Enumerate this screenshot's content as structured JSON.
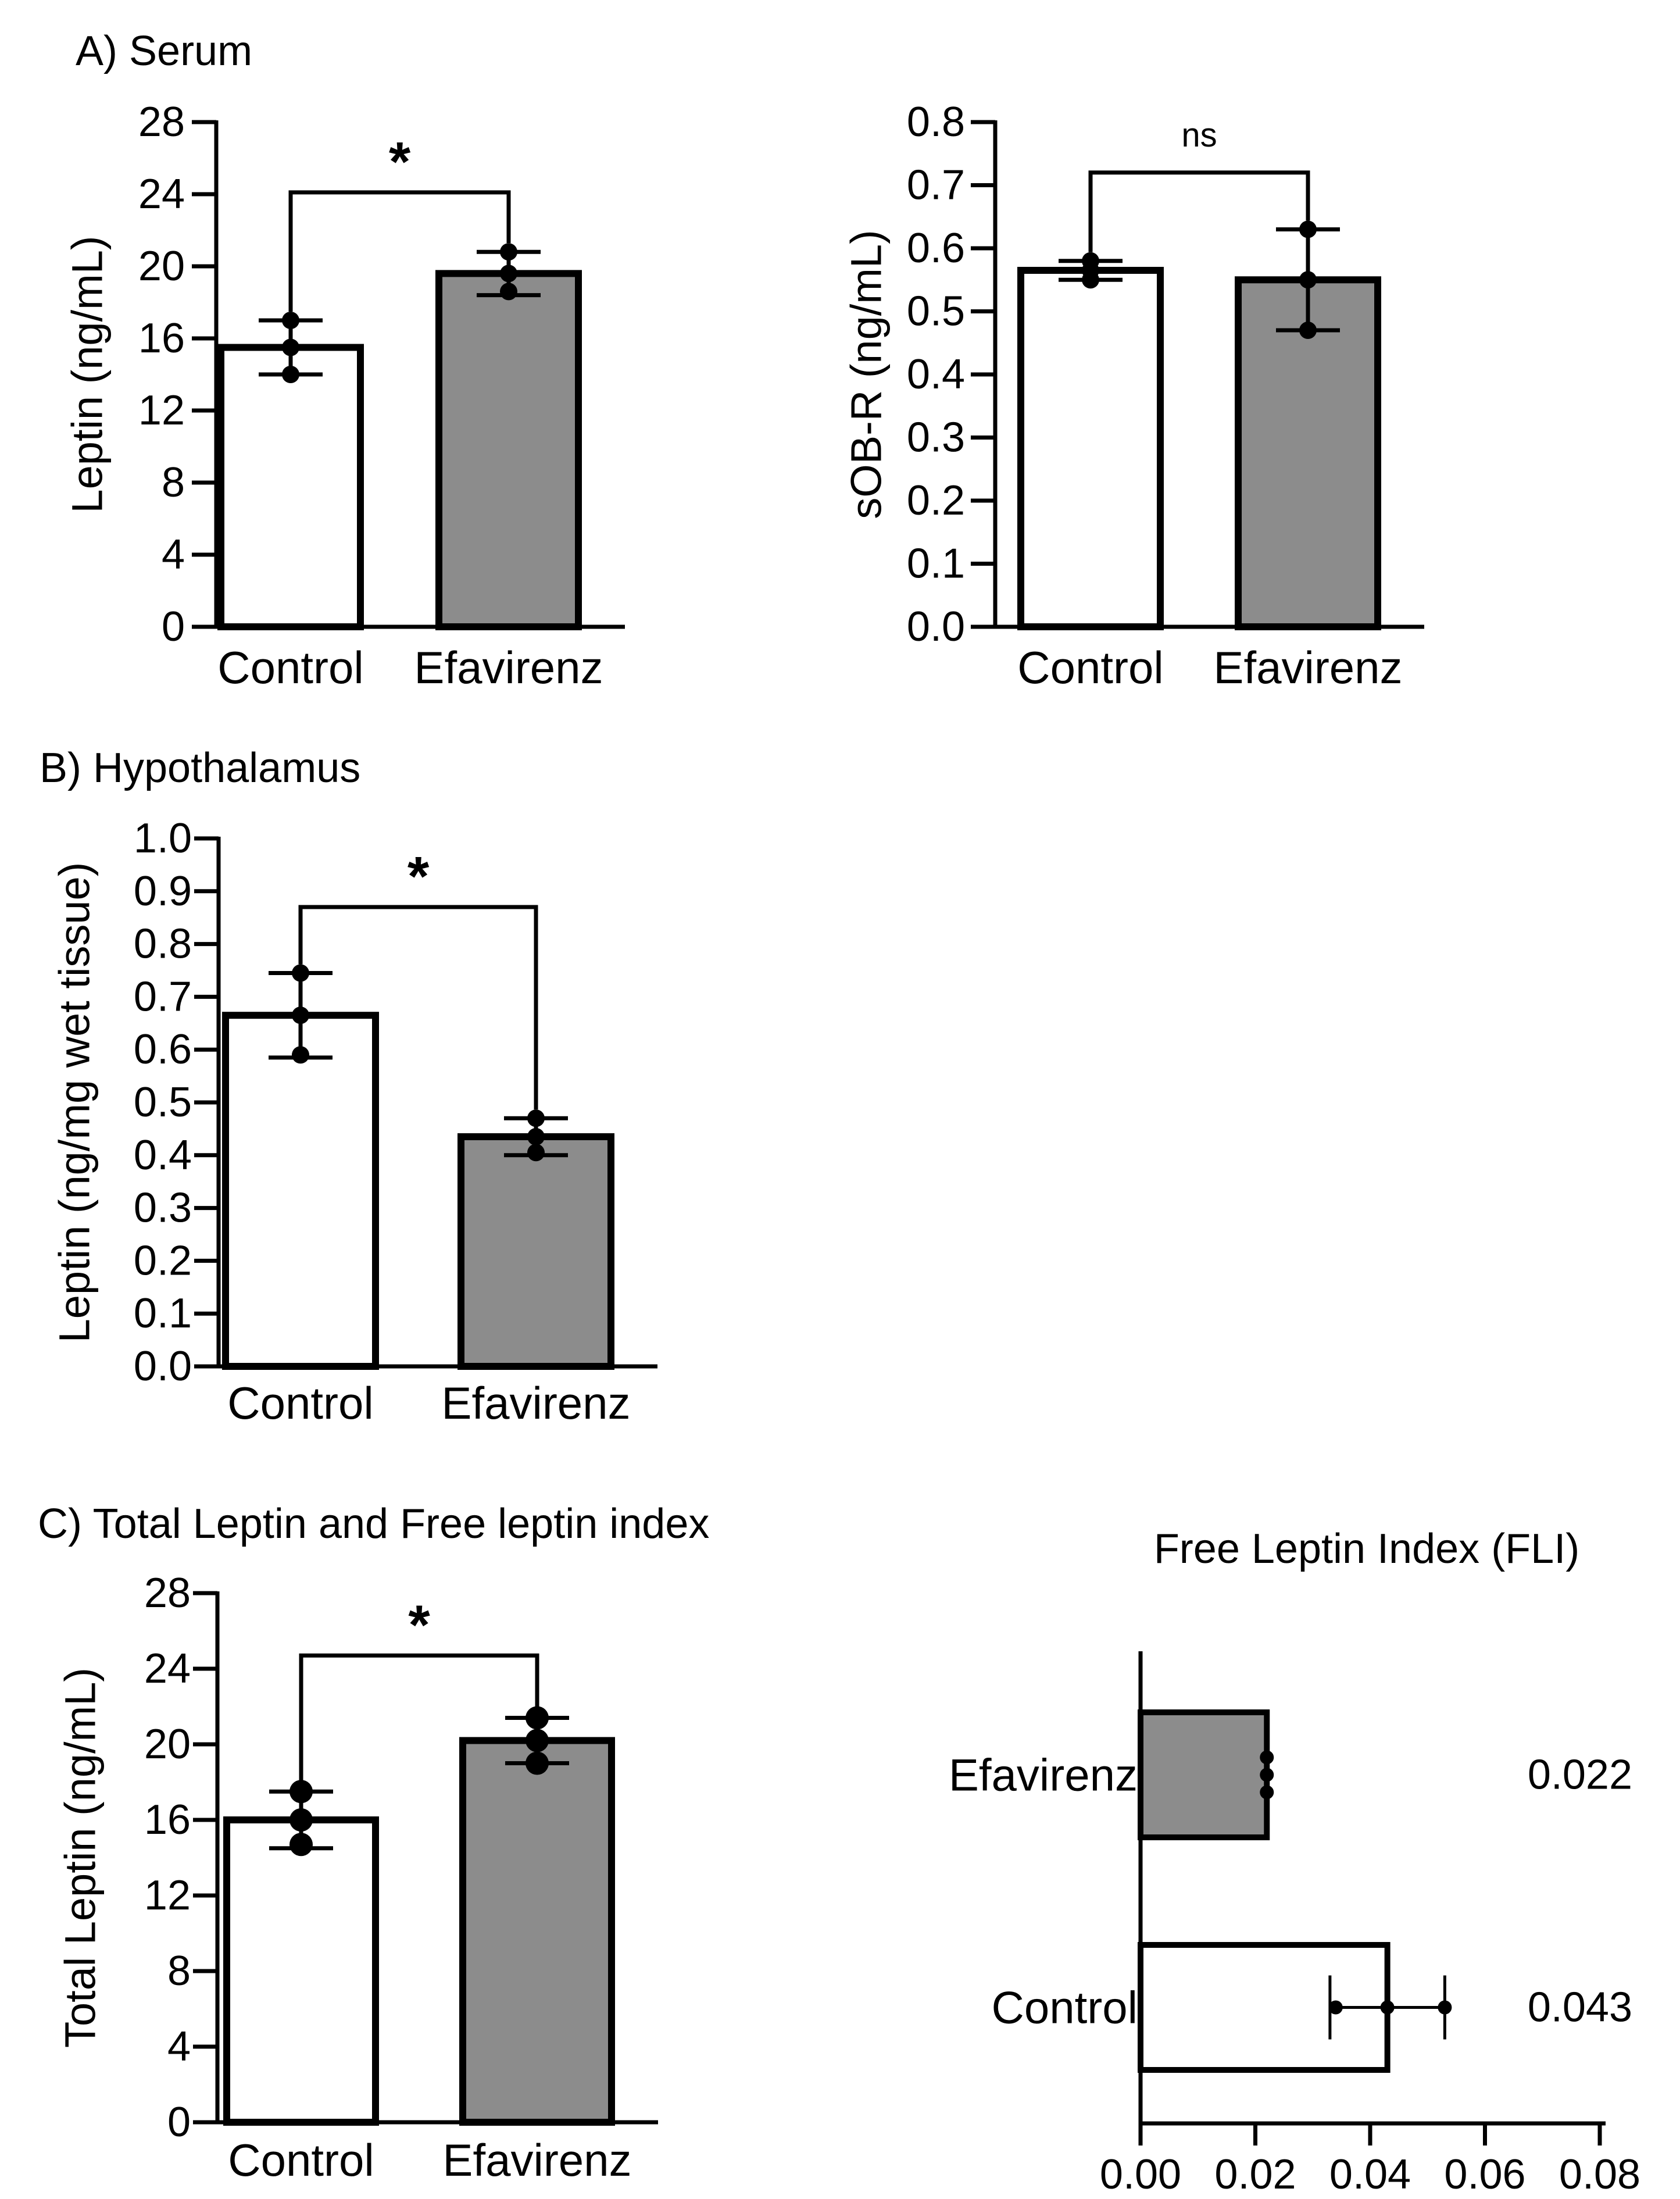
{
  "colors": {
    "control_fill": "#ffffff",
    "efavirenz_fill": "#8c8c8c",
    "stroke": "#000000"
  },
  "chart_data": [
    {
      "id": "serum-leptin",
      "type": "bar",
      "title": "A) Serum",
      "ylabel": "Leptin (ng/mL)",
      "xlabel": "",
      "categories": [
        "Control",
        "Efavirenz"
      ],
      "values": [
        15.5,
        19.6
      ],
      "error": [
        1.5,
        1.2
      ],
      "points": [
        [
          17.0,
          15.5,
          14.0
        ],
        [
          20.8,
          19.6,
          18.6
        ]
      ],
      "ylim": [
        0,
        28
      ],
      "yticks": [
        0,
        4,
        8,
        12,
        16,
        20,
        24,
        28
      ],
      "tick_labels": [
        "0",
        "4",
        "8",
        "12",
        "16",
        "20",
        "24",
        "28"
      ],
      "significance": "*",
      "bracket_y": 24.1
    },
    {
      "id": "serum-sobr",
      "type": "bar",
      "title": "",
      "ylabel": "sOB-R (ng/mL)",
      "xlabel": "",
      "categories": [
        "Control",
        "Efavirenz"
      ],
      "values": [
        0.565,
        0.55
      ],
      "error": [
        0.015,
        0.08
      ],
      "points": [
        [
          0.58,
          0.565,
          0.55
        ],
        [
          0.63,
          0.55,
          0.47
        ]
      ],
      "ylim": [
        0,
        0.8
      ],
      "yticks": [
        0,
        0.1,
        0.2,
        0.3,
        0.4,
        0.5,
        0.6,
        0.7,
        0.8
      ],
      "tick_labels": [
        "0.0",
        "0.1",
        "0.2",
        "0.3",
        "0.4",
        "0.5",
        "0.6",
        "0.7",
        "0.8"
      ],
      "significance": "ns",
      "bracket_y": 0.72
    },
    {
      "id": "hypothalamus-leptin",
      "type": "bar",
      "title": "B) Hypothalamus",
      "ylabel": "Leptin (ng/mg wet tissue)",
      "xlabel": "",
      "categories": [
        "Control",
        "Efavirenz"
      ],
      "values": [
        0.665,
        0.435
      ],
      "error": [
        0.08,
        0.035
      ],
      "points": [
        [
          0.745,
          0.665,
          0.59
        ],
        [
          0.47,
          0.435,
          0.405
        ]
      ],
      "ylim": [
        0,
        1.0
      ],
      "yticks": [
        0,
        0.1,
        0.2,
        0.3,
        0.4,
        0.5,
        0.6,
        0.7,
        0.8,
        0.9,
        1.0
      ],
      "tick_labels": [
        "0.0",
        "0.1",
        "0.2",
        "0.3",
        "0.4",
        "0.5",
        "0.6",
        "0.7",
        "0.8",
        "0.9",
        "1.0"
      ],
      "significance": "*",
      "bracket_y": 0.87
    },
    {
      "id": "total-leptin",
      "type": "bar",
      "title": "C) Total Leptin and Free leptin index",
      "ylabel": "Total Leptin (ng/mL)",
      "xlabel": "",
      "categories": [
        "Control",
        "Efavirenz"
      ],
      "values": [
        16.0,
        20.2
      ],
      "error": [
        1.5,
        1.2
      ],
      "points": [
        [
          17.5,
          16.0,
          14.7
        ],
        [
          21.4,
          20.2,
          19.0
        ]
      ],
      "ylim": [
        0,
        28
      ],
      "yticks": [
        0,
        4,
        8,
        12,
        16,
        20,
        24,
        28
      ],
      "tick_labels": [
        "0",
        "4",
        "8",
        "12",
        "16",
        "20",
        "24",
        "28"
      ],
      "significance": "*",
      "bracket_y": 24.7
    },
    {
      "id": "fli",
      "type": "bar",
      "orientation": "horizontal",
      "title": "Free Leptin Index (FLI)",
      "xlabel": "",
      "ylabel": "",
      "categories": [
        "Efavirenz",
        "Control"
      ],
      "values": [
        0.022,
        0.043
      ],
      "value_labels": [
        "0.022",
        "0.043"
      ],
      "error": [
        0.0,
        0.01
      ],
      "points": [
        [
          0.022,
          0.022,
          0.022
        ],
        [
          0.034,
          0.043,
          0.053
        ]
      ],
      "xlim": [
        0,
        0.08
      ],
      "xticks": [
        0,
        0.02,
        0.04,
        0.06,
        0.08
      ],
      "tick_labels": [
        "0.00",
        "0.02",
        "0.04",
        "0.06",
        "0.08"
      ]
    }
  ]
}
